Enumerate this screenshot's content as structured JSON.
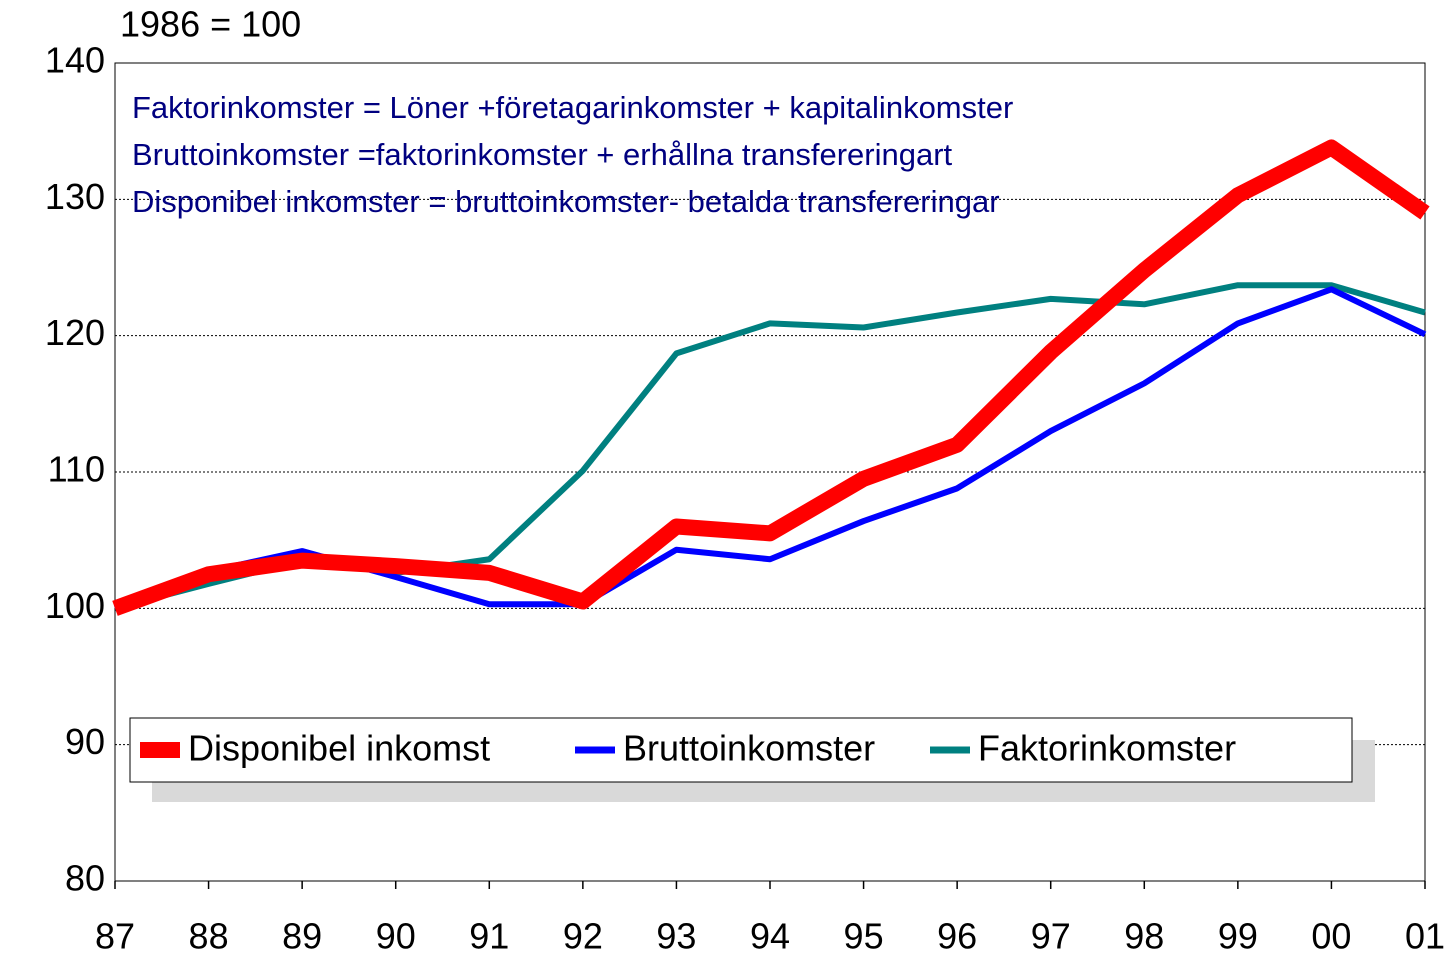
{
  "chart_data": {
    "type": "line",
    "subtitle": "1986 = 100",
    "annotations": [
      "Faktorinkomster = Löner +företagarinkomster + kapitalinkomster",
      "Bruttoinkomster =faktorinkomster + erhållna transfereringart",
      "Disponibel inkomster = bruttoinkomster-  betalda transfereringar"
    ],
    "categories": [
      "87",
      "88",
      "89",
      "90",
      "91",
      "92",
      "93",
      "94",
      "95",
      "96",
      "97",
      "98",
      "99",
      "00",
      "01"
    ],
    "series": [
      {
        "name": "Disponibel inkomst",
        "color": "#ff0000",
        "values": [
          100,
          102.5,
          103.5,
          103.1,
          102.6,
          100.5,
          106,
          105.5,
          109.5,
          112,
          118.8,
          124.8,
          130.3,
          133.8,
          129
        ]
      },
      {
        "name": "Bruttoinkomster",
        "color": "#0000ff",
        "values": [
          100,
          102.7,
          104.2,
          102.3,
          100.3,
          100.3,
          104.3,
          103.6,
          106.4,
          108.8,
          113,
          116.5,
          120.9,
          123.4,
          120.1
        ]
      },
      {
        "name": "Faktorinkomster",
        "color": "#008080",
        "values": [
          100,
          101.8,
          103.5,
          102.6,
          103.6,
          110.1,
          118.7,
          120.9,
          120.6,
          121.7,
          122.7,
          122.3,
          123.7,
          123.7,
          121.7
        ]
      }
    ],
    "ylim": [
      80,
      140
    ],
    "yticks": [
      80,
      90,
      100,
      110,
      120,
      130,
      140
    ],
    "grid": true,
    "legend": "lower left"
  }
}
